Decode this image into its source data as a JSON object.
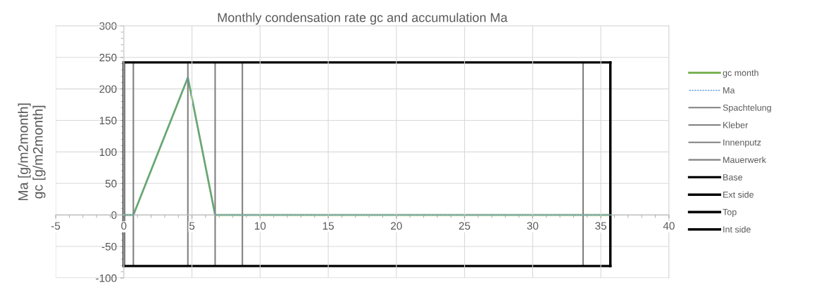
{
  "chart_data": {
    "type": "line",
    "title": "Monthly condensation rate gc and accumulation Ma",
    "ylabel": "Ma [g/m2month]\ngc [g/m2month]",
    "xlim": [
      -5,
      40
    ],
    "xticks": [
      -5,
      0,
      5,
      10,
      15,
      20,
      25,
      30,
      35,
      40
    ],
    "ylim": [
      -100,
      300
    ],
    "yticks": [
      -100,
      -50,
      0,
      50,
      100,
      150,
      200,
      250,
      300
    ],
    "grid": true,
    "legend": "right",
    "marker": "none",
    "series": [
      {
        "name": "gc month",
        "color": "#70ad47",
        "x": [
          0,
          0.7,
          4.7,
          6.7,
          35.7
        ],
        "values": [
          0,
          0,
          218,
          0,
          0
        ],
        "line_style": "solid"
      },
      {
        "name": "Ma",
        "color": "#5b9bd5",
        "x": [
          0,
          0.7,
          4.7,
          6.7,
          35.7
        ],
        "values": [
          0,
          0,
          218,
          0,
          0
        ],
        "line_style": "dashed"
      },
      {
        "name": "Spachtelung",
        "color": "#808080",
        "x": [
          0.7,
          0.7
        ],
        "values": [
          -81,
          242
        ],
        "line_style": "solid"
      },
      {
        "color": "#808080",
        "x": [
          4.7,
          4.7
        ],
        "values": [
          -81,
          242
        ],
        "line_style": "solid"
      },
      {
        "name": "Kleber",
        "color": "#808080",
        "x": [
          6.7,
          6.7
        ],
        "values": [
          -81,
          242
        ],
        "line_style": "solid"
      },
      {
        "name": "Innenputz",
        "color": "#808080",
        "x": [
          8.7,
          8.7
        ],
        "values": [
          -81,
          242
        ],
        "line_style": "solid"
      },
      {
        "name": "Mauerwerk",
        "color": "#808080",
        "x": [
          33.7,
          33.7
        ],
        "values": [
          -81,
          242
        ],
        "line_style": "solid"
      },
      {
        "name": "Base",
        "color": "#000000",
        "x": [
          0,
          35.7
        ],
        "values": [
          -81,
          -81
        ],
        "line_style": "solid"
      },
      {
        "name": "Ext side",
        "color": "#000000",
        "x": [
          35.7,
          35.7
        ],
        "values": [
          -81,
          242
        ],
        "line_style": "solid"
      },
      {
        "name": "Top",
        "color": "#000000",
        "x": [
          0,
          35.7
        ],
        "values": [
          242,
          242
        ],
        "line_style": "solid"
      },
      {
        "name": "Int side",
        "color": "#000000",
        "x": [
          0,
          0
        ],
        "values": [
          -81,
          242
        ],
        "line_style": "solid"
      }
    ]
  }
}
